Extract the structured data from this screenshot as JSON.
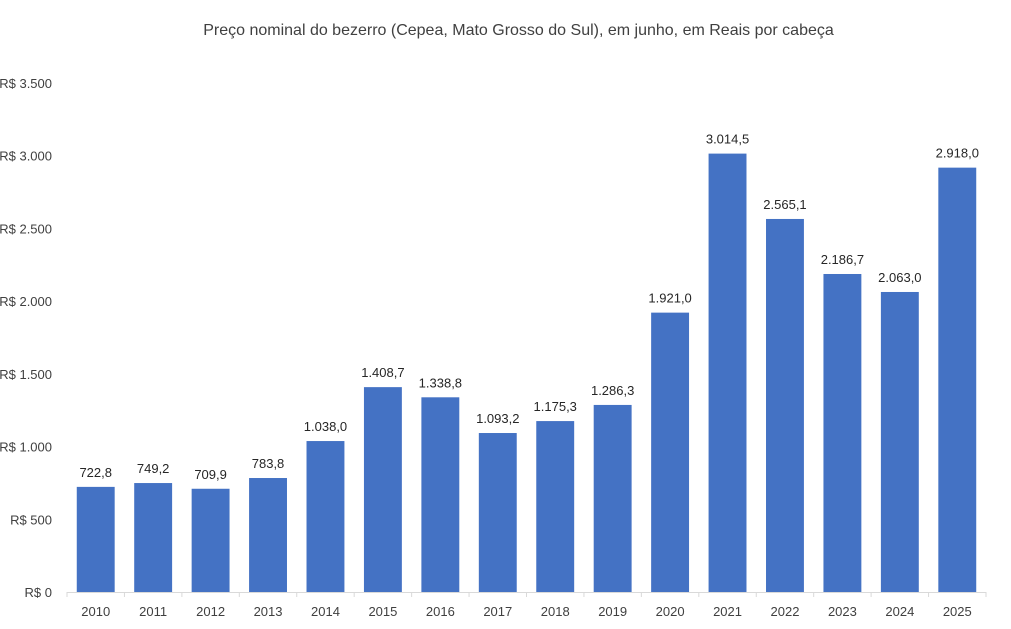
{
  "chart_data": {
    "type": "bar",
    "title": "Preço nominal do bezerro (Cepea, Mato Grosso do Sul), em junho, em Reais por cabeça",
    "xlabel": "",
    "ylabel": "",
    "categories": [
      "2010",
      "2011",
      "2012",
      "2013",
      "2014",
      "2015",
      "2016",
      "2017",
      "2018",
      "2019",
      "2020",
      "2021",
      "2022",
      "2023",
      "2024",
      "2025"
    ],
    "values": [
      722.8,
      749.2,
      709.9,
      783.8,
      1038.0,
      1408.7,
      1338.8,
      1093.2,
      1175.3,
      1286.3,
      1921.0,
      3014.5,
      2565.1,
      2186.7,
      2063.0,
      2918.0
    ],
    "value_labels": [
      "722,8",
      "749,2",
      "709,9",
      "783,8",
      "1.038,0",
      "1.408,7",
      "1.338,8",
      "1.093,2",
      "1.175,3",
      "1.286,3",
      "1.921,0",
      "3.014,5",
      "2.565,1",
      "2.186,7",
      "2.063,0",
      "2.918,0"
    ],
    "ylim": [
      0,
      3500
    ],
    "yticks": [
      0,
      500,
      1000,
      1500,
      2000,
      2500,
      3000,
      3500
    ],
    "ytick_labels": [
      "R$ 0",
      "R$ 500",
      "R$ 1.000",
      "R$ 1.500",
      "R$ 2.000",
      "R$ 2.500",
      "R$ 3.000",
      "R$ 3.500"
    ],
    "grid": false,
    "legend": "none",
    "bar_color": "#4472C4"
  }
}
